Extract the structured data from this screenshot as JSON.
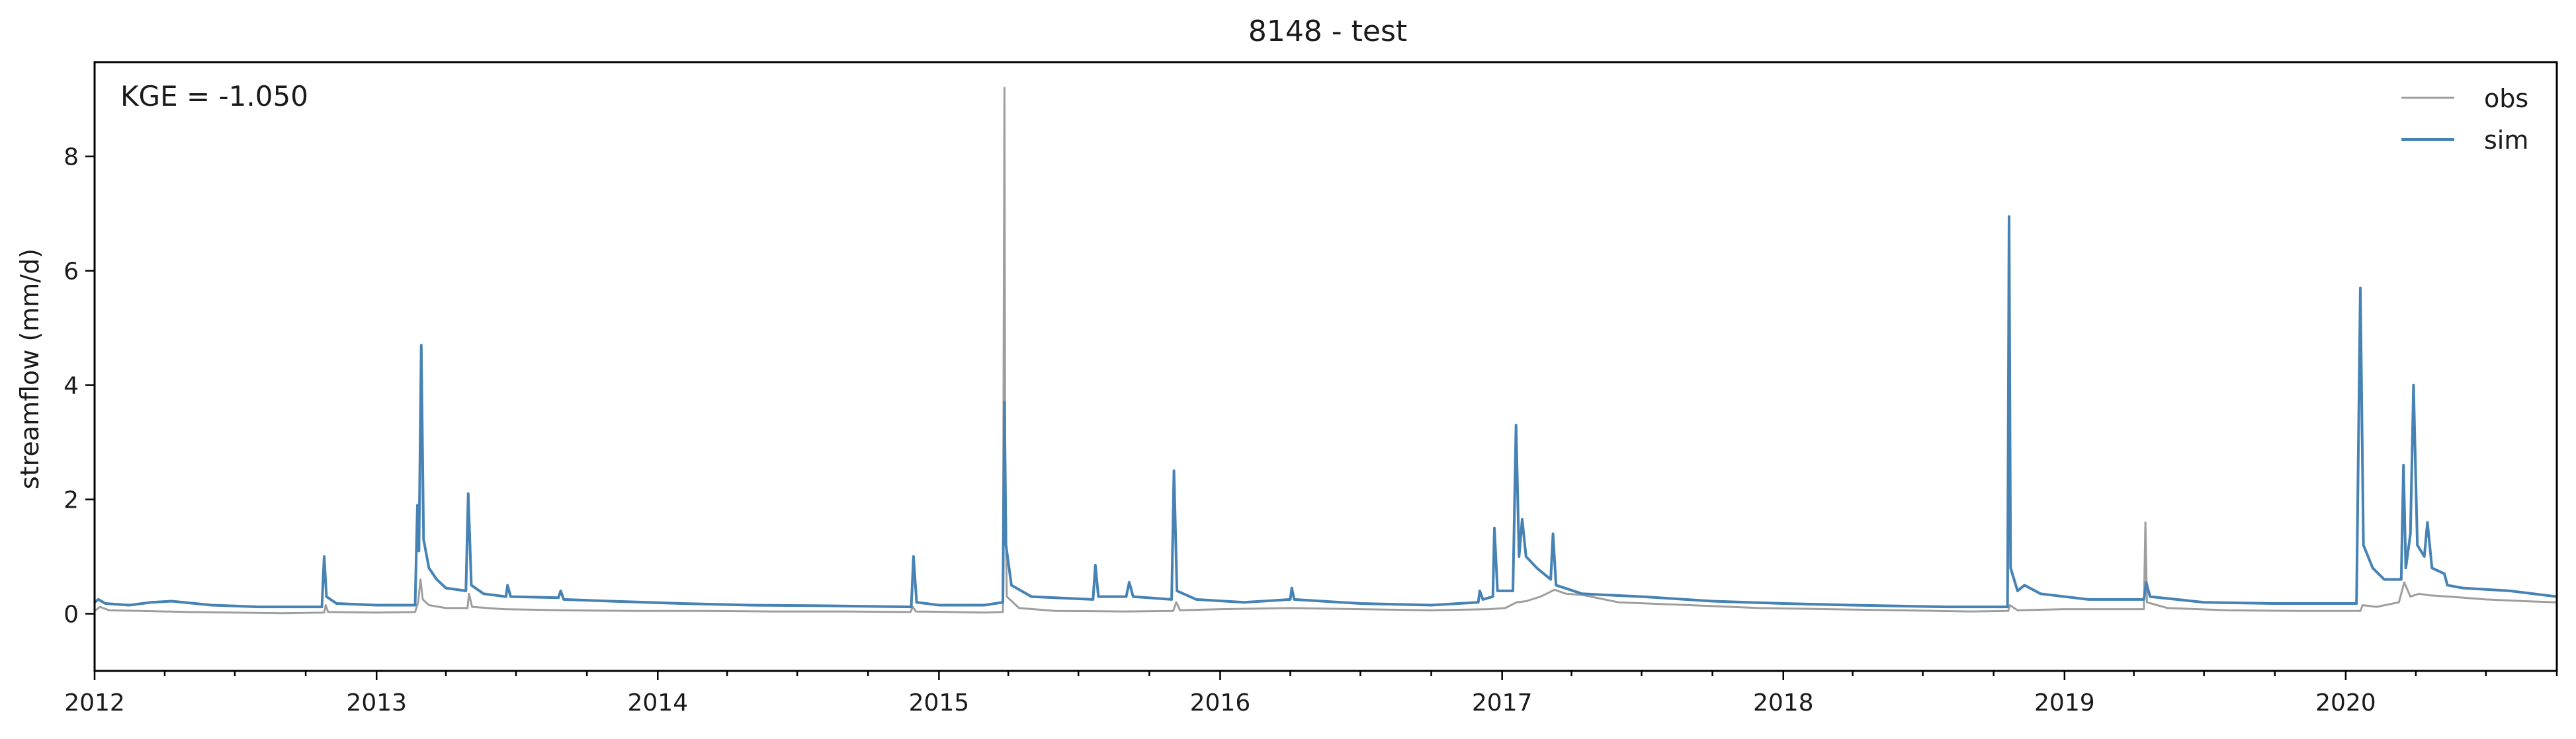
{
  "chart_data": {
    "type": "line",
    "title": "8148 - test",
    "xlabel": "",
    "ylabel": "streamflow (mm/d)",
    "xlim": [
      "2012-01-01",
      "2020-10-01"
    ],
    "ylim": [
      -1.0,
      9.65
    ],
    "x_ticks": [
      "2012",
      "2013",
      "2014",
      "2015",
      "2016",
      "2017",
      "2018",
      "2019",
      "2020"
    ],
    "y_ticks": [
      0,
      2,
      4,
      6,
      8
    ],
    "y_tick_labels": [
      "0",
      "2",
      "4",
      "6",
      "8"
    ],
    "grid": false,
    "legend": "top-right",
    "annotation": "KGE = -1.050",
    "series": [
      {
        "name": "obs",
        "color": "#9e9e9e",
        "points": [
          [
            "2012-01-01",
            0.05
          ],
          [
            "2012-01-08",
            0.12
          ],
          [
            "2012-01-20",
            0.06
          ],
          [
            "2012-03-01",
            0.05
          ],
          [
            "2012-05-01",
            0.03
          ],
          [
            "2012-07-01",
            0.02
          ],
          [
            "2012-09-01",
            0.01
          ],
          [
            "2012-10-25",
            0.02
          ],
          [
            "2012-10-27",
            0.15
          ],
          [
            "2012-10-30",
            0.03
          ],
          [
            "2013-01-01",
            0.02
          ],
          [
            "2013-02-20",
            0.03
          ],
          [
            "2013-02-24",
            0.2
          ],
          [
            "2013-02-27",
            0.6
          ],
          [
            "2013-03-02",
            0.25
          ],
          [
            "2013-03-10",
            0.15
          ],
          [
            "2013-04-01",
            0.1
          ],
          [
            "2013-04-29",
            0.1
          ],
          [
            "2013-05-01",
            0.35
          ],
          [
            "2013-05-05",
            0.12
          ],
          [
            "2013-06-15",
            0.08
          ],
          [
            "2013-09-01",
            0.06
          ],
          [
            "2013-12-01",
            0.05
          ],
          [
            "2014-03-01",
            0.05
          ],
          [
            "2014-06-01",
            0.04
          ],
          [
            "2014-09-01",
            0.04
          ],
          [
            "2014-11-25",
            0.03
          ],
          [
            "2014-11-28",
            0.12
          ],
          [
            "2014-12-02",
            0.04
          ],
          [
            "2015-03-01",
            0.02
          ],
          [
            "2015-03-25",
            0.03
          ],
          [
            "2015-03-27",
            9.2
          ],
          [
            "2015-03-28",
            2.5
          ],
          [
            "2015-03-30",
            0.3
          ],
          [
            "2015-04-15",
            0.1
          ],
          [
            "2015-06-01",
            0.05
          ],
          [
            "2015-09-01",
            0.04
          ],
          [
            "2015-11-01",
            0.05
          ],
          [
            "2015-11-05",
            0.2
          ],
          [
            "2015-11-10",
            0.06
          ],
          [
            "2016-01-01",
            0.08
          ],
          [
            "2016-04-01",
            0.1
          ],
          [
            "2016-07-01",
            0.08
          ],
          [
            "2016-10-01",
            0.06
          ],
          [
            "2016-12-15",
            0.08
          ],
          [
            "2017-01-05",
            0.1
          ],
          [
            "2017-01-20",
            0.2
          ],
          [
            "2017-02-01",
            0.22
          ],
          [
            "2017-02-20",
            0.3
          ],
          [
            "2017-03-10",
            0.42
          ],
          [
            "2017-03-25",
            0.35
          ],
          [
            "2017-04-15",
            0.33
          ],
          [
            "2017-06-01",
            0.2
          ],
          [
            "2017-09-01",
            0.15
          ],
          [
            "2017-12-01",
            0.1
          ],
          [
            "2018-03-01",
            0.08
          ],
          [
            "2018-06-01",
            0.06
          ],
          [
            "2018-09-01",
            0.04
          ],
          [
            "2018-10-20",
            0.05
          ],
          [
            "2018-10-22",
            0.15
          ],
          [
            "2018-11-01",
            0.06
          ],
          [
            "2019-01-01",
            0.08
          ],
          [
            "2019-03-01",
            0.08
          ],
          [
            "2019-04-14",
            0.08
          ],
          [
            "2019-04-16",
            1.6
          ],
          [
            "2019-04-18",
            0.2
          ],
          [
            "2019-05-15",
            0.1
          ],
          [
            "2019-08-01",
            0.06
          ],
          [
            "2019-11-01",
            0.05
          ],
          [
            "2020-01-20",
            0.05
          ],
          [
            "2020-01-23",
            0.15
          ],
          [
            "2020-02-10",
            0.12
          ],
          [
            "2020-03-10",
            0.2
          ],
          [
            "2020-03-17",
            0.55
          ],
          [
            "2020-03-25",
            0.3
          ],
          [
            "2020-04-05",
            0.35
          ],
          [
            "2020-04-20",
            0.32
          ],
          [
            "2020-05-15",
            0.3
          ],
          [
            "2020-07-01",
            0.25
          ],
          [
            "2020-08-20",
            0.22
          ],
          [
            "2020-10-01",
            0.2
          ]
        ]
      },
      {
        "name": "sim",
        "color": "#4682b4",
        "points": [
          [
            "2012-01-01",
            0.2
          ],
          [
            "2012-01-06",
            0.25
          ],
          [
            "2012-01-15",
            0.18
          ],
          [
            "2012-02-15",
            0.15
          ],
          [
            "2012-03-15",
            0.2
          ],
          [
            "2012-04-10",
            0.22
          ],
          [
            "2012-06-01",
            0.15
          ],
          [
            "2012-08-01",
            0.12
          ],
          [
            "2012-10-22",
            0.12
          ],
          [
            "2012-10-25",
            1.0
          ],
          [
            "2012-10-28",
            0.3
          ],
          [
            "2012-11-10",
            0.18
          ],
          [
            "2013-01-01",
            0.15
          ],
          [
            "2013-02-20",
            0.15
          ],
          [
            "2013-02-23",
            1.9
          ],
          [
            "2013-02-25",
            1.1
          ],
          [
            "2013-02-28",
            4.7
          ],
          [
            "2013-03-03",
            1.3
          ],
          [
            "2013-03-10",
            0.8
          ],
          [
            "2013-03-20",
            0.6
          ],
          [
            "2013-04-01",
            0.45
          ],
          [
            "2013-04-27",
            0.4
          ],
          [
            "2013-04-30",
            2.1
          ],
          [
            "2013-05-04",
            0.5
          ],
          [
            "2013-05-20",
            0.35
          ],
          [
            "2013-06-18",
            0.3
          ],
          [
            "2013-06-20",
            0.5
          ],
          [
            "2013-06-24",
            0.3
          ],
          [
            "2013-08-25",
            0.28
          ],
          [
            "2013-08-28",
            0.4
          ],
          [
            "2013-09-01",
            0.25
          ],
          [
            "2013-11-01",
            0.22
          ],
          [
            "2014-02-01",
            0.18
          ],
          [
            "2014-05-01",
            0.15
          ],
          [
            "2014-08-01",
            0.14
          ],
          [
            "2014-11-26",
            0.12
          ],
          [
            "2014-11-29",
            1.0
          ],
          [
            "2014-12-03",
            0.2
          ],
          [
            "2015-01-01",
            0.15
          ],
          [
            "2015-03-01",
            0.15
          ],
          [
            "2015-03-25",
            0.2
          ],
          [
            "2015-03-27",
            3.7
          ],
          [
            "2015-03-29",
            1.2
          ],
          [
            "2015-04-05",
            0.5
          ],
          [
            "2015-05-01",
            0.3
          ],
          [
            "2015-07-20",
            0.25
          ],
          [
            "2015-07-23",
            0.85
          ],
          [
            "2015-07-27",
            0.3
          ],
          [
            "2015-09-01",
            0.3
          ],
          [
            "2015-09-05",
            0.55
          ],
          [
            "2015-09-10",
            0.3
          ],
          [
            "2015-10-30",
            0.25
          ],
          [
            "2015-11-02",
            2.5
          ],
          [
            "2015-11-06",
            0.4
          ],
          [
            "2015-12-01",
            0.25
          ],
          [
            "2016-02-01",
            0.2
          ],
          [
            "2016-04-01",
            0.25
          ],
          [
            "2016-04-03",
            0.45
          ],
          [
            "2016-04-06",
            0.25
          ],
          [
            "2016-07-01",
            0.18
          ],
          [
            "2016-10-01",
            0.15
          ],
          [
            "2016-12-01",
            0.2
          ],
          [
            "2016-12-03",
            0.4
          ],
          [
            "2016-12-07",
            0.25
          ],
          [
            "2016-12-20",
            0.3
          ],
          [
            "2016-12-22",
            1.5
          ],
          [
            "2016-12-26",
            0.4
          ],
          [
            "2017-01-15",
            0.4
          ],
          [
            "2017-01-19",
            3.3
          ],
          [
            "2017-01-23",
            1.0
          ],
          [
            "2017-01-27",
            1.65
          ],
          [
            "2017-02-01",
            1.0
          ],
          [
            "2017-02-15",
            0.8
          ],
          [
            "2017-03-05",
            0.6
          ],
          [
            "2017-03-08",
            1.4
          ],
          [
            "2017-03-12",
            0.5
          ],
          [
            "2017-04-15",
            0.35
          ],
          [
            "2017-07-01",
            0.3
          ],
          [
            "2017-10-01",
            0.22
          ],
          [
            "2018-01-01",
            0.18
          ],
          [
            "2018-04-01",
            0.15
          ],
          [
            "2018-08-01",
            0.12
          ],
          [
            "2018-10-19",
            0.12
          ],
          [
            "2018-10-21",
            6.95
          ],
          [
            "2018-10-23",
            0.8
          ],
          [
            "2018-11-01",
            0.4
          ],
          [
            "2018-11-10",
            0.5
          ],
          [
            "2018-12-01",
            0.35
          ],
          [
            "2019-02-01",
            0.25
          ],
          [
            "2019-04-14",
            0.25
          ],
          [
            "2019-04-17",
            0.55
          ],
          [
            "2019-04-22",
            0.3
          ],
          [
            "2019-07-01",
            0.2
          ],
          [
            "2019-10-01",
            0.18
          ],
          [
            "2020-01-15",
            0.18
          ],
          [
            "2020-01-20",
            5.7
          ],
          [
            "2020-01-24",
            1.2
          ],
          [
            "2020-02-05",
            0.8
          ],
          [
            "2020-02-20",
            0.6
          ],
          [
            "2020-03-13",
            0.6
          ],
          [
            "2020-03-16",
            2.6
          ],
          [
            "2020-03-19",
            0.8
          ],
          [
            "2020-03-25",
            1.4
          ],
          [
            "2020-03-29",
            4.0
          ],
          [
            "2020-04-03",
            1.2
          ],
          [
            "2020-04-12",
            1.0
          ],
          [
            "2020-04-16",
            1.6
          ],
          [
            "2020-04-22",
            0.8
          ],
          [
            "2020-05-08",
            0.7
          ],
          [
            "2020-05-12",
            0.5
          ],
          [
            "2020-06-01",
            0.45
          ],
          [
            "2020-08-01",
            0.4
          ],
          [
            "2020-10-01",
            0.3
          ]
        ]
      }
    ]
  }
}
